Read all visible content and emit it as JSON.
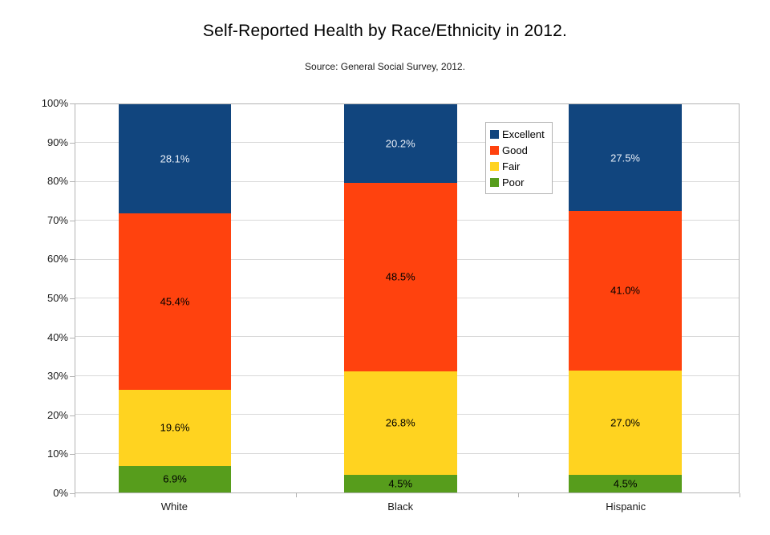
{
  "chart_data": {
    "type": "bar",
    "stacked": true,
    "title": "Self-Reported Health by Race/Ethnicity in 2012.",
    "subtitle": "Source: General Social Survey, 2012.",
    "categories": [
      "White",
      "Black",
      "Hispanic"
    ],
    "series": [
      {
        "name": "Excellent",
        "color": "#11457e",
        "label_color": "#e8eef7",
        "values": [
          28.1,
          20.2,
          27.5
        ],
        "labels": [
          "28.1%",
          "20.2%",
          "27.5%"
        ]
      },
      {
        "name": "Good",
        "color": "#ff420e",
        "label_color": "#000000",
        "values": [
          45.4,
          48.5,
          41.0
        ],
        "labels": [
          "45.4%",
          "48.5%",
          "41.0%"
        ]
      },
      {
        "name": "Fair",
        "color": "#ffd320",
        "label_color": "#000000",
        "values": [
          19.6,
          26.8,
          27.0
        ],
        "labels": [
          "19.6%",
          "26.8%",
          "27.0%"
        ]
      },
      {
        "name": "Poor",
        "color": "#579d1c",
        "label_color": "#000000",
        "values": [
          6.9,
          4.5,
          4.5
        ],
        "labels": [
          "6.9%",
          "4.5%",
          "4.5%"
        ]
      }
    ],
    "y_axis": {
      "min": 0,
      "max": 100,
      "step": 10,
      "ticks": [
        "0%",
        "10%",
        "20%",
        "30%",
        "40%",
        "50%",
        "60%",
        "70%",
        "80%",
        "90%",
        "100%"
      ]
    },
    "legend": {
      "entries": [
        "Excellent",
        "Good",
        "Fair",
        "Poor"
      ],
      "position": "inside-top-right-of-center"
    },
    "grid": true,
    "colors": {
      "gridline": "#d9d9d9",
      "plot_border": "#b3b3b3",
      "background": "#ffffff"
    }
  }
}
